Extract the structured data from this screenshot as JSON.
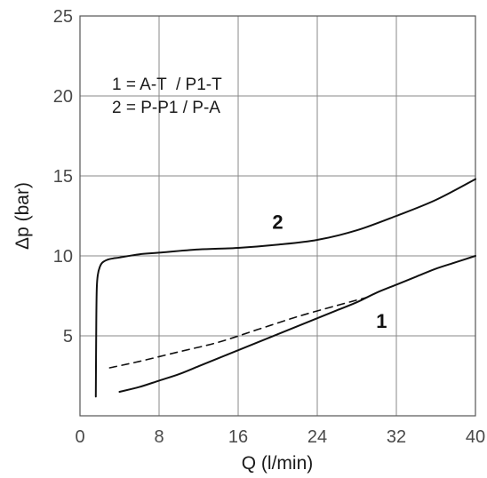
{
  "chart_data": {
    "type": "line",
    "title": "",
    "xlabel": "Q (l/min)",
    "ylabel": "Δp (bar)",
    "xlim": [
      0,
      40
    ],
    "ylim": [
      0,
      25
    ],
    "xticks": [
      "0",
      "8",
      "16",
      "24",
      "32",
      "40"
    ],
    "yticks": [
      "5",
      "10",
      "15",
      "20",
      "25"
    ],
    "grid": true,
    "legend_lines": [
      "1 = A-T  / P1-T",
      "2 = P-P1 / P-A"
    ],
    "series": [
      {
        "name": "1",
        "style": "solid",
        "x": [
          4,
          6,
          8,
          10,
          12,
          14,
          16,
          18,
          20,
          22,
          24,
          26,
          28,
          30,
          32,
          34,
          36,
          38,
          40
        ],
        "y": [
          1.5,
          1.8,
          2.2,
          2.6,
          3.1,
          3.6,
          4.1,
          4.6,
          5.1,
          5.6,
          6.1,
          6.6,
          7.1,
          7.7,
          8.2,
          8.7,
          9.2,
          9.6,
          10.0
        ]
      },
      {
        "name": "1",
        "style": "dashed",
        "x": [
          3,
          6,
          10,
          14,
          18,
          22,
          26,
          29
        ],
        "y": [
          3.0,
          3.4,
          4.0,
          4.6,
          5.4,
          6.2,
          6.9,
          7.4
        ]
      },
      {
        "name": "2",
        "style": "solid",
        "x": [
          1.6,
          1.65,
          1.7,
          1.8,
          2.0,
          2.3,
          3,
          4,
          6,
          8,
          12,
          16,
          20,
          24,
          28,
          32,
          36,
          40
        ],
        "y": [
          1.2,
          6.0,
          8.0,
          8.8,
          9.3,
          9.6,
          9.8,
          9.9,
          10.1,
          10.2,
          10.4,
          10.5,
          10.7,
          11.0,
          11.6,
          12.5,
          13.5,
          14.8
        ]
      }
    ],
    "curve_labels": [
      {
        "text": "2",
        "x": 20,
        "y": 11.7
      },
      {
        "text": "1",
        "x": 30.5,
        "y": 5.5
      }
    ]
  }
}
